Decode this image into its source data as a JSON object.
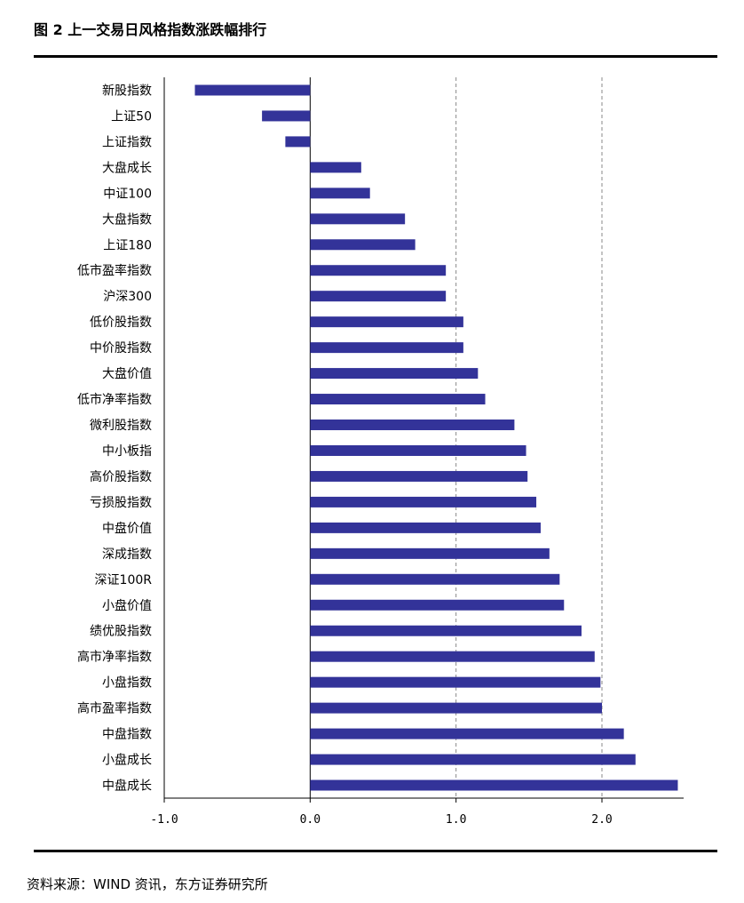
{
  "figure": {
    "title": "图 2 上一交易日风格指数涨跌幅排行",
    "source": "资料来源：WIND 资讯，东方证券研究所"
  },
  "chart_data": {
    "type": "bar",
    "orientation": "horizontal",
    "title": "",
    "xlabel": "",
    "ylabel": "",
    "xlim": [
      -1.0,
      2.5
    ],
    "xticks": [
      -1.0,
      0.0,
      1.0,
      2.0
    ],
    "xtick_labels": [
      "-1.0",
      "0.0",
      "1.0",
      "2.0"
    ],
    "grid": "vertical-dashed",
    "bar_color": "#333399",
    "categories": [
      "新股指数",
      "上证50",
      "上证指数",
      "大盘成长",
      "中证100",
      "大盘指数",
      "上证180",
      "低市盈率指数",
      "沪深300",
      "低价股指数",
      "中价股指数",
      "大盘价值",
      "低市净率指数",
      "微利股指数",
      "中小板指",
      "高价股指数",
      "亏损股指数",
      "中盘价值",
      "深成指数",
      "深证100R",
      "小盘价值",
      "绩优股指数",
      "高市净率指数",
      "小盘指数",
      "高市盈率指数",
      "中盘指数",
      "小盘成长",
      "中盘成长"
    ],
    "values": [
      -0.79,
      -0.33,
      -0.17,
      0.35,
      0.41,
      0.65,
      0.72,
      0.93,
      0.93,
      1.05,
      1.05,
      1.15,
      1.2,
      1.4,
      1.48,
      1.49,
      1.55,
      1.58,
      1.64,
      1.71,
      1.74,
      1.86,
      1.95,
      1.99,
      2.0,
      2.15,
      2.23,
      2.52
    ]
  }
}
